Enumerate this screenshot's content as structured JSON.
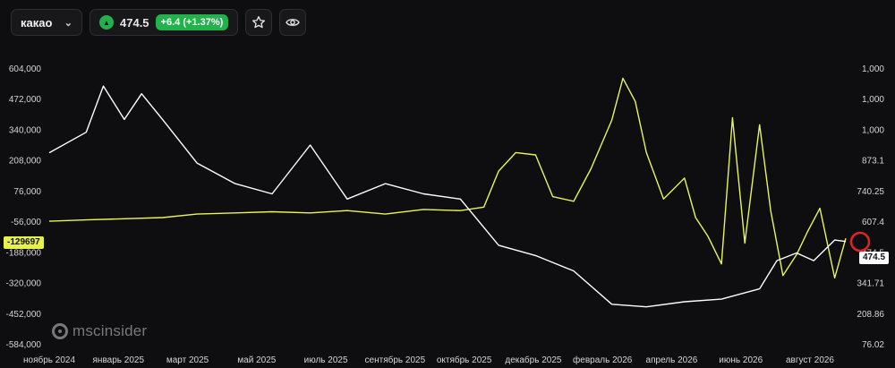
{
  "header": {
    "symbol": "какао",
    "price": "474.5",
    "change": "+6.4 (+1.37%)",
    "icons": [
      "chevron-down-icon",
      "up-triangle-icon",
      "star-icon",
      "eye-icon"
    ]
  },
  "brand": {
    "logo_text": "mscinsider"
  },
  "colors": {
    "background": "#0e0e10",
    "positions_line": "#e9f556",
    "price_line": "#ffffff",
    "up": "#21b24b",
    "marker": "#e02424"
  },
  "chart_data": {
    "type": "line",
    "x_tick_labels": [
      "ноябрь 2024",
      "январь 2025",
      "март 2025",
      "май 2025",
      "июль 2025",
      "сентябрь 2025",
      "октябрь 2025",
      "декабрь 2025",
      "февраль 2026",
      "апрель 2026",
      "июнь 2026",
      "август 2026"
    ],
    "x_range": [
      "2024-11-01",
      "2026-08-10"
    ],
    "y_left_ticks": [
      "604,000",
      "472,000",
      "340,000",
      "208,000",
      "76,000",
      "-56,000",
      "-188,000",
      "-320,000",
      "-452,000",
      "-584,000"
    ],
    "y_left_range": [
      -584000,
      604000
    ],
    "y_right_ticks": [
      "1,000",
      "1,000",
      "1,000",
      "873.1",
      "740.25",
      "607.4",
      "474.5",
      "341.71",
      "208.86",
      "76.02"
    ],
    "y_right_range": [
      76.02,
      1150
    ],
    "last_left_label": "-129697",
    "last_right_label": "474.5",
    "grid": false,
    "series": [
      {
        "axis": "left",
        "x": [
          "2024-11-01",
          "2024-12-01",
          "2025-01-01",
          "2025-02-01",
          "2025-03-01",
          "2025-04-01",
          "2025-05-01",
          "2025-06-01",
          "2025-07-01",
          "2025-08-01",
          "2025-09-01",
          "2025-10-01",
          "2025-10-20",
          "2025-11-01",
          "2025-11-15",
          "2025-12-01",
          "2025-12-15",
          "2026-01-01",
          "2026-01-15",
          "2026-02-01",
          "2026-02-10",
          "2026-02-20",
          "2026-03-01",
          "2026-03-15",
          "2026-04-01",
          "2026-04-10",
          "2026-04-20",
          "2026-05-01",
          "2026-05-10",
          "2026-05-20",
          "2026-06-01",
          "2026-06-10",
          "2026-06-20",
          "2026-07-01",
          "2026-07-10",
          "2026-07-20",
          "2026-08-01",
          "2026-08-10"
        ],
        "y": [
          -56000,
          -50000,
          -45000,
          -40000,
          -25000,
          -20000,
          -15000,
          -20000,
          -10000,
          -25000,
          -5000,
          -10000,
          5000,
          160000,
          240000,
          230000,
          50000,
          30000,
          170000,
          380000,
          560000,
          460000,
          240000,
          40000,
          130000,
          -40000,
          -120000,
          -240000,
          390000,
          -150000,
          360000,
          -10000,
          -290000,
          -200000,
          -100000,
          0,
          -300000,
          -129697
        ]
      },
      {
        "axis": "right",
        "x": [
          "2024-11-01",
          "2024-12-01",
          "2024-12-15",
          "2025-01-01",
          "2025-01-15",
          "2025-02-01",
          "2025-03-01",
          "2025-04-01",
          "2025-05-01",
          "2025-06-01",
          "2025-07-01",
          "2025-08-01",
          "2025-09-01",
          "2025-10-01",
          "2025-11-01",
          "2025-12-01",
          "2026-01-01",
          "2026-02-01",
          "2026-03-01",
          "2026-04-01",
          "2026-05-01",
          "2026-06-01",
          "2026-06-15",
          "2026-07-01",
          "2026-07-15",
          "2026-08-01",
          "2026-08-10"
        ],
        "y": [
          820,
          900,
          1080,
          950,
          1050,
          950,
          780,
          700,
          660,
          850,
          640,
          700,
          660,
          640,
          460,
          420,
          360,
          230,
          220,
          240,
          250,
          290,
          400,
          430,
          400,
          480,
          474.5
        ]
      }
    ]
  }
}
